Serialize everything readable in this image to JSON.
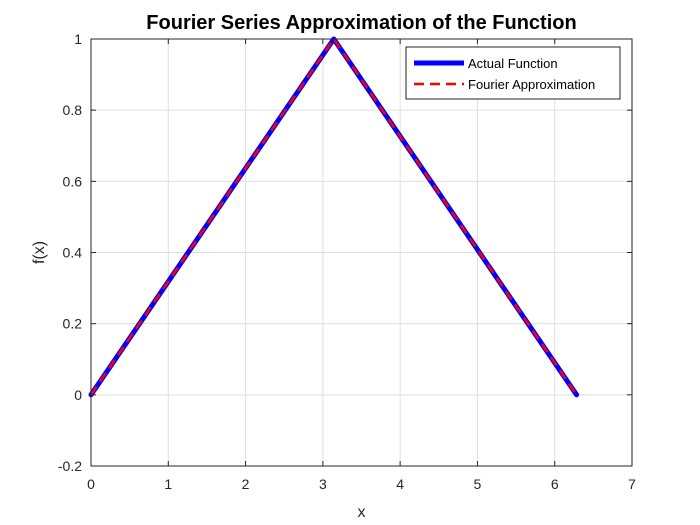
{
  "chart_data": {
    "type": "line",
    "title": "Fourier Series Approximation of the Function",
    "xlabel": "x",
    "ylabel": "f(x)",
    "xlim": [
      0,
      7
    ],
    "ylim": [
      -0.2,
      1
    ],
    "xticks": [
      0,
      1,
      2,
      3,
      4,
      5,
      6,
      7
    ],
    "yticks": [
      -0.2,
      0,
      0.2,
      0.4,
      0.6,
      0.8,
      1
    ],
    "xtick_labels": [
      "0",
      "1",
      "2",
      "3",
      "4",
      "5",
      "6",
      "7"
    ],
    "ytick_labels": [
      "-0.2",
      "0",
      "0.2",
      "0.4",
      "0.6",
      "0.8",
      "1"
    ],
    "grid": true,
    "legend_position": "top-right",
    "series": [
      {
        "name": "Actual Function",
        "color": "#0000ff",
        "style": "solid",
        "x": [
          0,
          3.1416,
          6.2832
        ],
        "y": [
          0,
          1,
          0
        ]
      },
      {
        "name": "Fourier Approximation",
        "color": "#ff0000",
        "style": "dashed",
        "x": [
          0,
          3.1416,
          6.2832
        ],
        "y": [
          0,
          1,
          0
        ]
      }
    ]
  }
}
